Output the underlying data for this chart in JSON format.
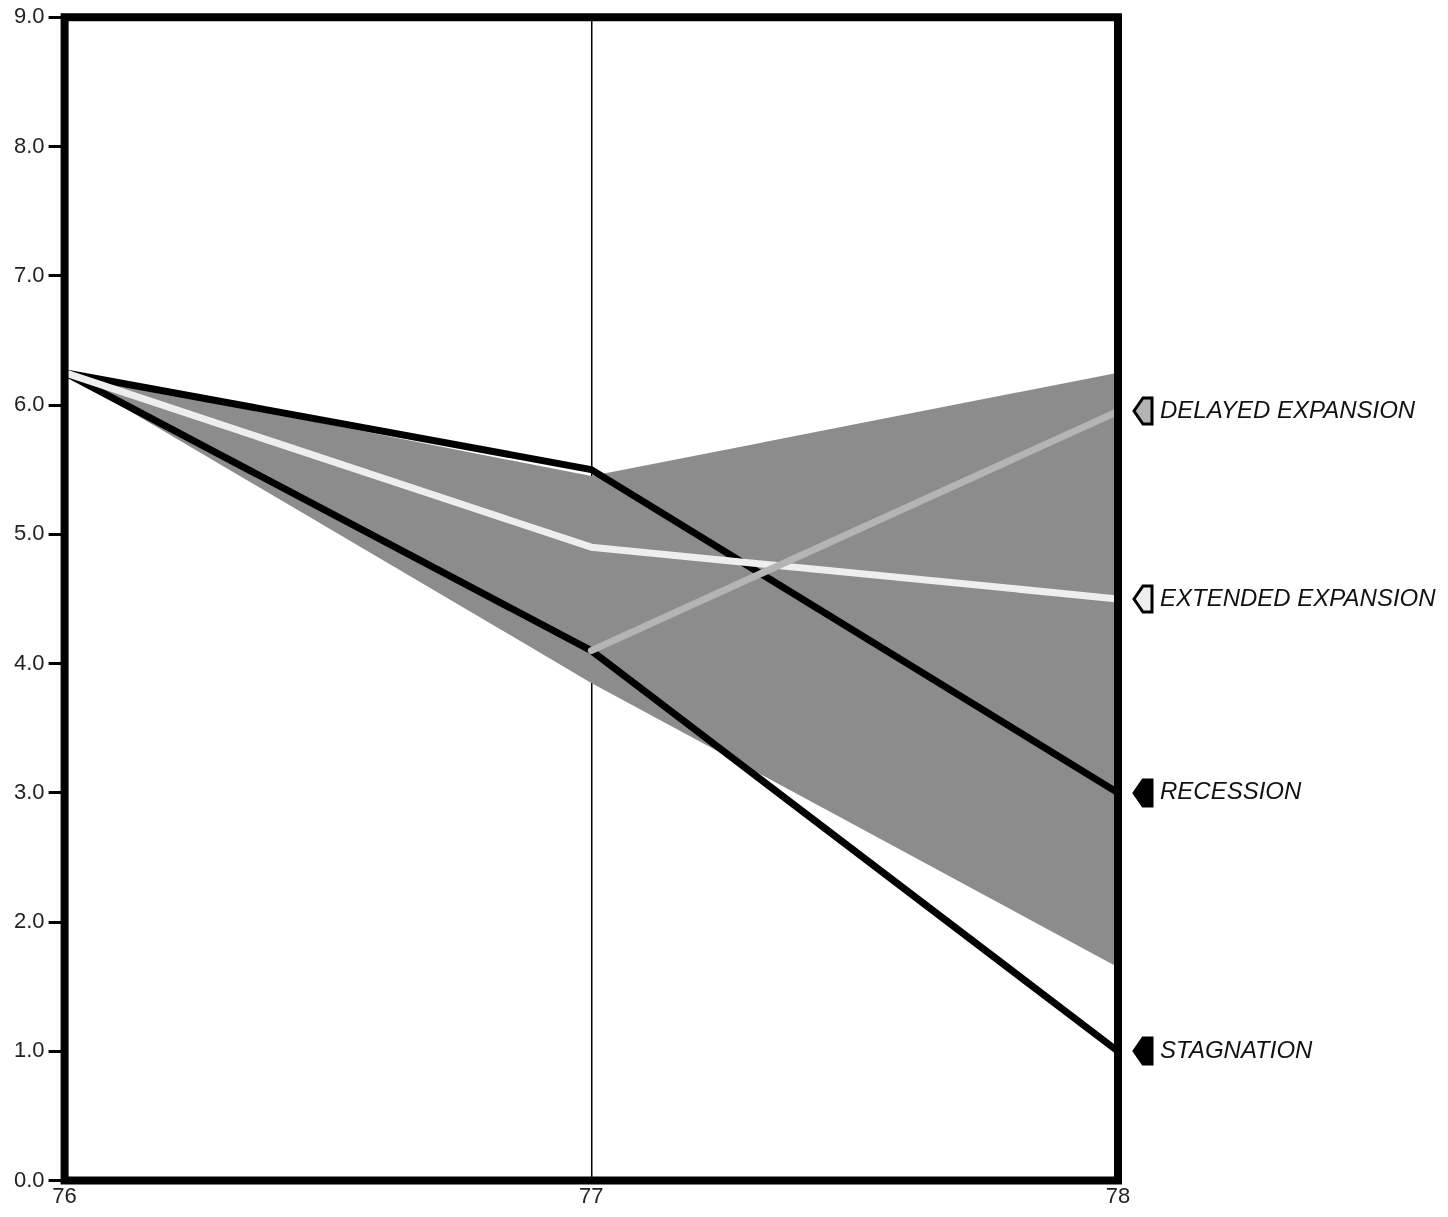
{
  "chart_data": {
    "type": "line",
    "x": [
      76,
      77,
      78
    ],
    "xlim": [
      76,
      78
    ],
    "xticks": [
      76,
      77,
      78
    ],
    "ylim": [
      0,
      9
    ],
    "yticks": [
      {
        "value": 0,
        "label": "0.0"
      },
      {
        "value": 1,
        "label": "1.0"
      },
      {
        "value": 2,
        "label": "2.0"
      },
      {
        "value": 3,
        "label": "3.0"
      },
      {
        "value": 4,
        "label": "4.0"
      },
      {
        "value": 5,
        "label": "5.0"
      },
      {
        "value": 6,
        "label": "6.0"
      },
      {
        "value": 7,
        "label": "7.0"
      },
      {
        "value": 8,
        "label": "8.0"
      },
      {
        "value": 9,
        "label": "9.0"
      }
    ],
    "grid": "x",
    "legend": "right",
    "marker": "none",
    "line_style": "solid",
    "series": [
      {
        "name": "DELAYED EXPANSION",
        "color": "#b4b4b4",
        "x": [
          77,
          78
        ],
        "values": [
          4.1,
          5.95
        ]
      },
      {
        "name": "EXTENDED EXPANSION",
        "color": "#eeeeee",
        "values": [
          6.25,
          4.9,
          4.5
        ],
        "lower": [
          6.25,
          3.85,
          1.65
        ],
        "upper": [
          6.25,
          5.45,
          6.25
        ]
      },
      {
        "name": "RECESSION",
        "color": "#000000",
        "values": [
          6.25,
          5.5,
          3.0
        ]
      },
      {
        "name": "STAGNATION",
        "color": "#000000",
        "values": [
          6.25,
          4.1,
          1.0
        ]
      }
    ]
  }
}
